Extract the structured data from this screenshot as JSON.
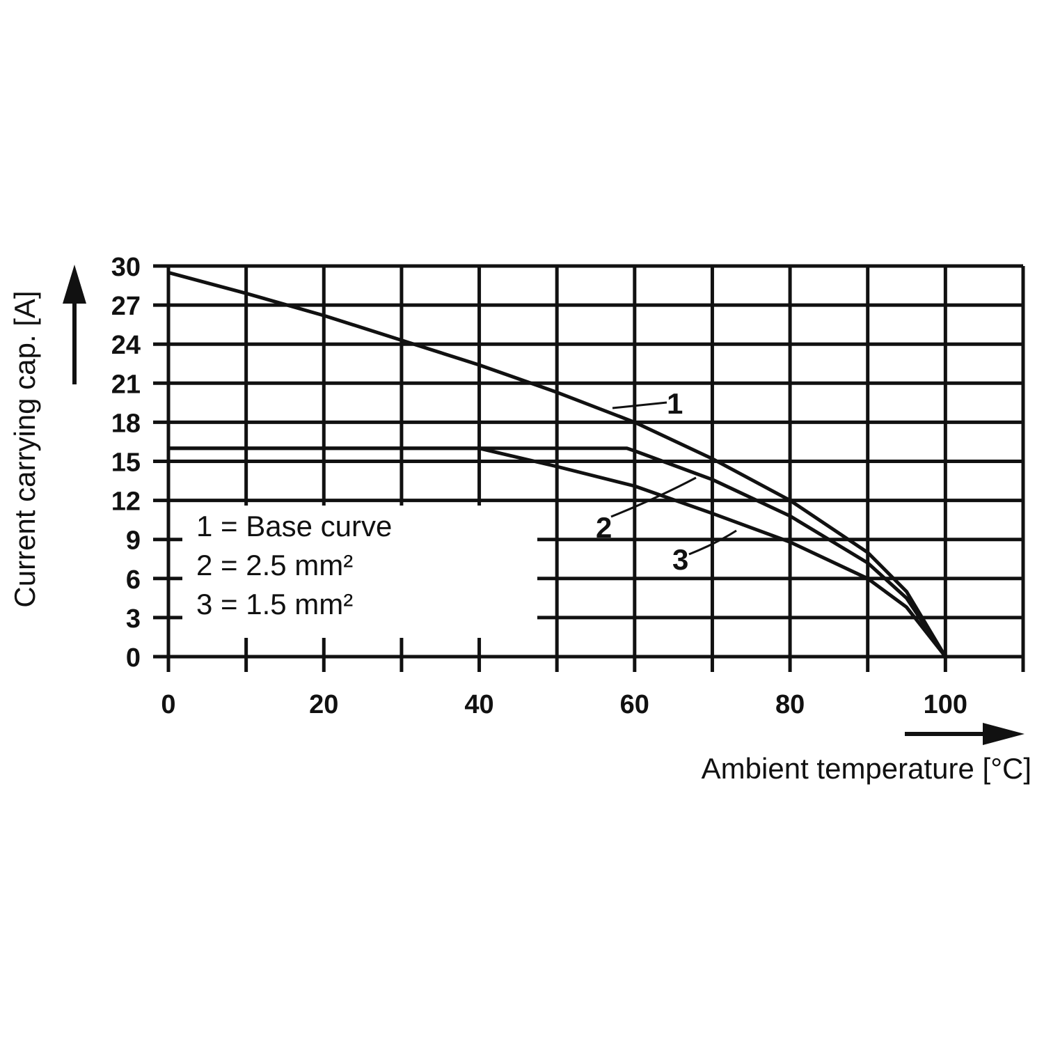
{
  "chart_data": {
    "type": "line",
    "xlabel": "Ambient temperature [°C]",
    "ylabel": "Current carrying cap. [A]",
    "xlim": [
      0,
      110
    ],
    "ylim": [
      0,
      30
    ],
    "x_ticks": [
      0,
      20,
      40,
      60,
      80,
      100
    ],
    "y_ticks": [
      0,
      3,
      6,
      9,
      12,
      15,
      18,
      21,
      24,
      27,
      30
    ],
    "grid": true,
    "series": [
      {
        "name": "1",
        "x": [
          0,
          10,
          20,
          30,
          40,
          50,
          60,
          70,
          80,
          90,
          95,
          100
        ],
        "y": [
          29.5,
          27.9,
          26.2,
          24.3,
          22.4,
          20.3,
          18.0,
          15.2,
          12.0,
          8.0,
          5.0,
          0.0
        ]
      },
      {
        "name": "2",
        "x": [
          0,
          40,
          59,
          60,
          70,
          80,
          90,
          95,
          100
        ],
        "y": [
          16.0,
          16.0,
          16.0,
          15.8,
          13.6,
          10.8,
          7.2,
          4.5,
          0.0
        ]
      },
      {
        "name": "3",
        "x": [
          0,
          40,
          50,
          60,
          70,
          80,
          90,
          95,
          100
        ],
        "y": [
          16.0,
          16.0,
          14.6,
          13.1,
          11.0,
          8.8,
          6.0,
          3.8,
          0.0
        ]
      }
    ],
    "legend": [
      "1 = Base curve",
      "2 = 2.5 mm²",
      "3 = 1.5 mm²"
    ],
    "legend_placement": "bottom-left"
  }
}
